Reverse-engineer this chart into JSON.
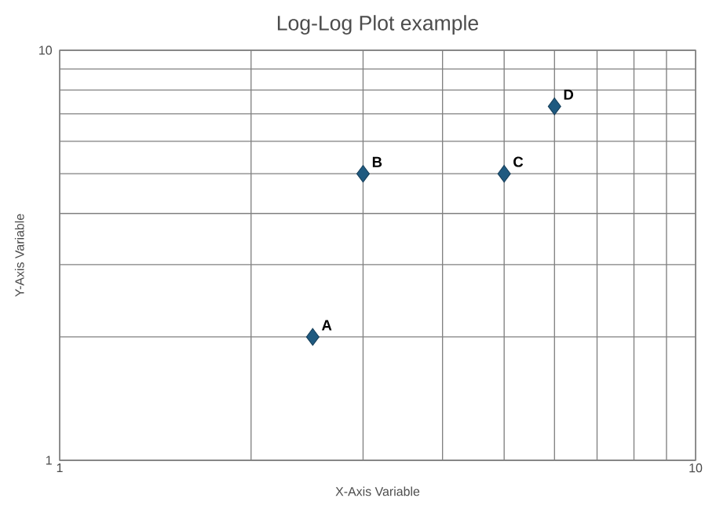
{
  "chart_data": {
    "type": "scatter",
    "title": "Log-Log Plot example",
    "xlabel": "X-Axis Variable",
    "ylabel": "Y-Axis Variable",
    "log": "xy",
    "grid": true,
    "marker": "diamond",
    "x": [
      2.5,
      3,
      5,
      6
    ],
    "series": [
      {
        "color": "#1f5a80",
        "values": [
          2,
          5,
          5,
          7.3
        ]
      }
    ],
    "annotations": [
      {
        "text": "A",
        "x": 2.5,
        "y": 2
      },
      {
        "text": "B",
        "x": 3,
        "y": 5
      },
      {
        "text": "C",
        "x": 5,
        "y": 5
      },
      {
        "text": "D",
        "x": 6,
        "y": 7.3
      }
    ],
    "xlim": [
      1,
      10
    ],
    "ylim": [
      1,
      10
    ],
    "xticks": [
      1,
      {
        "value": 2,
        "label": null
      },
      {
        "value": 3,
        "label": null
      },
      {
        "value": 4,
        "label": null
      },
      {
        "value": 5,
        "label": null
      },
      {
        "value": 6,
        "label": null
      },
      {
        "value": 7,
        "label": null
      },
      {
        "value": 8,
        "label": null
      },
      {
        "value": 9,
        "label": null
      },
      10
    ],
    "yticks": [
      1,
      {
        "value": 2,
        "label": null
      },
      {
        "value": 3,
        "label": null
      },
      {
        "value": 4,
        "label": null
      },
      {
        "value": 5,
        "label": null
      },
      {
        "value": 6,
        "label": null
      },
      {
        "value": 7,
        "label": null
      },
      {
        "value": 8,
        "label": null
      },
      {
        "value": 9,
        "label": null
      },
      10
    ]
  }
}
